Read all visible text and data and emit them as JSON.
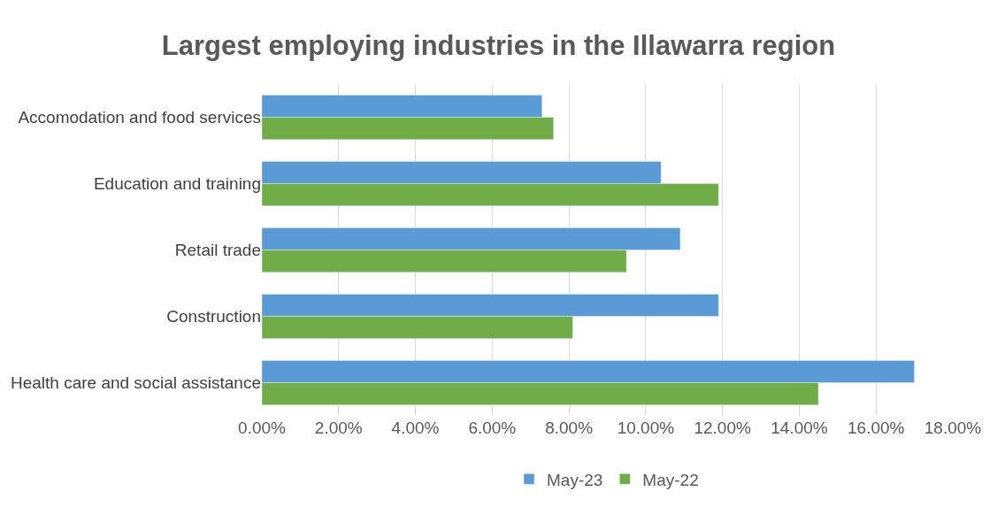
{
  "chart_data": {
    "type": "bar",
    "orientation": "horizontal",
    "title": "Largest employing industries in the Illawarra region",
    "categories": [
      "Accomodation and food services",
      "Education and training",
      "Retail trade",
      "Construction",
      "Health care and social assistance"
    ],
    "series": [
      {
        "name": "May-23",
        "color": "#5b9bd5",
        "values": [
          7.3,
          10.4,
          10.9,
          11.9,
          17.0
        ]
      },
      {
        "name": "May-22",
        "color": "#70ad47",
        "values": [
          7.6,
          11.9,
          9.5,
          8.1,
          14.5
        ]
      }
    ],
    "xlim": [
      0,
      18
    ],
    "xticks": [
      {
        "value": 0,
        "label": "0.00%"
      },
      {
        "value": 2,
        "label": "2.00%"
      },
      {
        "value": 4,
        "label": "4.00%"
      },
      {
        "value": 6,
        "label": "6.00%"
      },
      {
        "value": 8,
        "label": "8.00%"
      },
      {
        "value": 10,
        "label": "10.00%"
      },
      {
        "value": 12,
        "label": "12.00%"
      },
      {
        "value": 14,
        "label": "14.00%"
      },
      {
        "value": 16,
        "label": "16.00%"
      },
      {
        "value": 18,
        "label": "18.00%"
      }
    ],
    "grid": "x",
    "legend": "bottom"
  }
}
